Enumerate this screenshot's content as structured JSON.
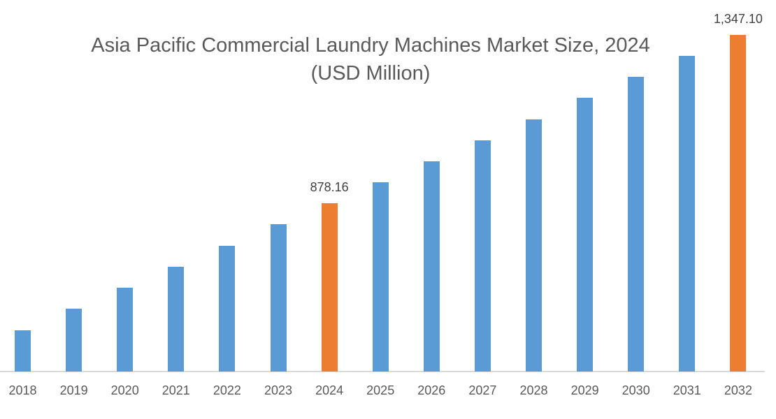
{
  "chart_data": {
    "type": "bar",
    "title": "Asia Pacific Commercial Laundry Machines Market Size, 2024",
    "subtitle": "(USD Million)",
    "xlabel": "",
    "ylabel": "",
    "categories": [
      "2018",
      "2019",
      "2020",
      "2021",
      "2022",
      "2023",
      "2024",
      "2025",
      "2026",
      "2027",
      "2028",
      "2029",
      "2030",
      "2031",
      "2032"
    ],
    "values": [
      524,
      584,
      643,
      701,
      760,
      820,
      878.16,
      937,
      995,
      1053,
      1112,
      1172,
      1230,
      1289,
      1347.1
    ],
    "bar_pixel_heights": [
      59,
      90,
      120,
      150,
      180,
      211,
      241,
      271,
      301,
      331,
      361,
      392,
      422,
      452,
      482
    ],
    "highlighted": [
      "2024",
      "2032"
    ],
    "data_labels": {
      "2024": "878.16",
      "2032": "1,347.10"
    },
    "colors": {
      "default": "#5b9bd5",
      "highlight": "#ed7d31"
    },
    "grid": false,
    "legend": null,
    "y_axis_visible": false
  },
  "title": {
    "line1": "Asia Pacific Commercial Laundry Machines Market Size, 2024",
    "line2": "(USD Million)"
  }
}
